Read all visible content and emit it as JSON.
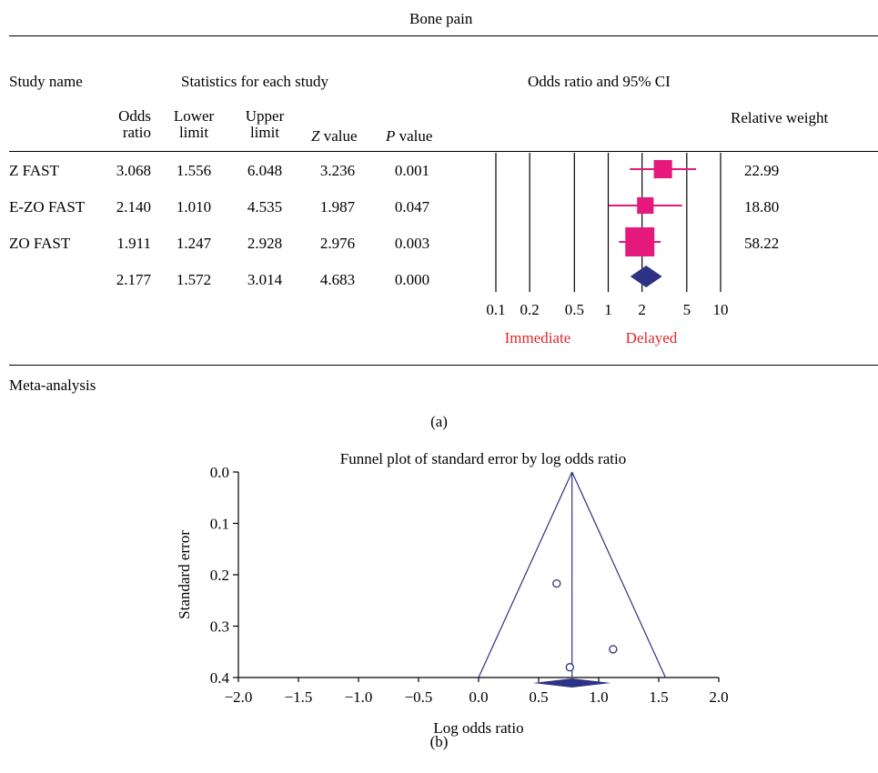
{
  "panel_a": {
    "title": "Bone pain",
    "header": {
      "study_name": "Study name",
      "statistics": "Statistics for each study",
      "odds_ci": "Odds ratio and 95% CI",
      "cols": [
        {
          "line1": "Odds",
          "line2": "ratio"
        },
        {
          "line1": "Lower",
          "line2": "limit"
        },
        {
          "line1": "Upper",
          "line2": "limit"
        }
      ],
      "z_label_italic": "Z",
      "z_label_rest": " value",
      "p_label_italic": "P",
      "p_label_rest": " value",
      "relative_weight": "Relative weight"
    },
    "rows": [
      {
        "name": "Z FAST",
        "or": "3.068",
        "lower": "1.556",
        "upper": "6.048",
        "z": "3.236",
        "p": "0.001",
        "weight": "22.99"
      },
      {
        "name": "E-ZO FAST",
        "or": "2.140",
        "lower": "1.010",
        "upper": "4.535",
        "z": "1.987",
        "p": "0.047",
        "weight": "18.80"
      },
      {
        "name": "ZO FAST",
        "or": "1.911",
        "lower": "1.247",
        "upper": "2.928",
        "z": "2.976",
        "p": "0.003",
        "weight": "58.22"
      },
      {
        "name": "",
        "or": "2.177",
        "lower": "1.572",
        "upper": "3.014",
        "z": "4.683",
        "p": "0.000",
        "weight": ""
      }
    ],
    "footer": "Meta-analysis",
    "caption": "(a)",
    "favours_left": "Immediate",
    "favours_right": "Delayed"
  },
  "panel_b": {
    "caption": "(b)"
  },
  "colors": {
    "pink": "#e5197b",
    "navy": "#2e3285",
    "red_text": "#e0262b"
  },
  "chart_data": [
    {
      "type": "scatter",
      "title": "",
      "xscale": "log",
      "xlabel": "",
      "ticks": [
        0.1,
        0.2,
        0.5,
        1,
        2,
        5,
        10
      ],
      "tick_labels": [
        "0.1",
        "0.2",
        "0.5",
        "1",
        "2",
        "5",
        "10"
      ],
      "series": [
        {
          "name": "Z FAST",
          "value": 3.068,
          "ci": [
            1.556,
            6.048
          ],
          "weight": 22.99
        },
        {
          "name": "E-ZO FAST",
          "value": 2.14,
          "ci": [
            1.01,
            4.535
          ],
          "weight": 18.8
        },
        {
          "name": "ZO FAST",
          "value": 1.911,
          "ci": [
            1.247,
            2.928
          ],
          "weight": 58.22
        },
        {
          "name": "",
          "value": 2.177,
          "ci": [
            1.572,
            3.014
          ],
          "summary": true
        }
      ]
    },
    {
      "type": "scatter",
      "title": "Funnel plot of standard error by log odds ratio",
      "xlabel": "Log odds ratio",
      "ylabel": "Standard error",
      "xlim": [
        -2.0,
        2.0
      ],
      "ylim": [
        0.0,
        0.4
      ],
      "x_ticks": [
        "−2.0",
        "−1.5",
        "−1.0",
        "−0.5",
        "0.0",
        "0.5",
        "1.0",
        "1.5",
        "2.0"
      ],
      "y_ticks": [
        "0.0",
        "0.1",
        "0.2",
        "0.3",
        "0.4"
      ],
      "points": [
        {
          "x": 0.65,
          "y": 0.217
        },
        {
          "x": 1.12,
          "y": 0.345
        },
        {
          "x": 0.76,
          "y": 0.38
        }
      ],
      "pooled_log_or": 0.778,
      "pooled_ci": [
        0.452,
        1.103
      ],
      "funnel_base": [
        0.0,
        1.556
      ]
    }
  ]
}
